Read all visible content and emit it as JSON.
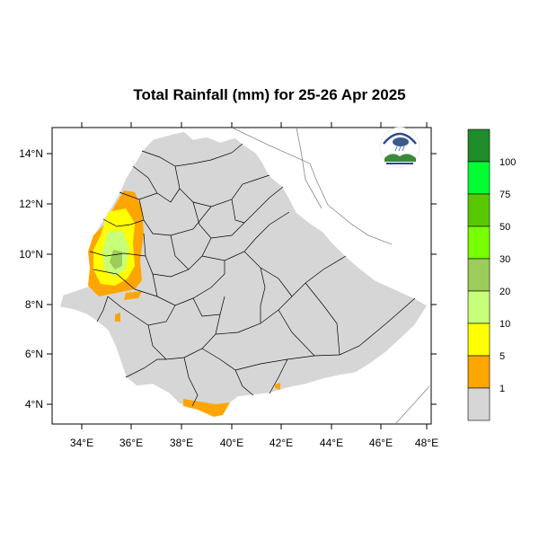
{
  "title": "Total Rainfall (mm) for 25-26 Apr 2025",
  "axes": {
    "x_ticks": [
      "34°E",
      "36°E",
      "38°E",
      "40°E",
      "42°E",
      "44°E",
      "46°E",
      "48°E"
    ],
    "y_ticks": [
      "14°N",
      "12°N",
      "10°N",
      "8°N",
      "6°N",
      "4°N"
    ]
  },
  "legend": {
    "labels": [
      "1",
      "5",
      "10",
      "20",
      "30",
      "50",
      "75",
      "100"
    ],
    "colors": [
      "#d6d6d6",
      "#ffa500",
      "#ffff00",
      "#c8ff78",
      "#9ccc5a",
      "#78ff00",
      "#5ac800",
      "#00ff32",
      "#1e8c28"
    ]
  },
  "logo": {
    "name": "ethiopian-meteorology-institute-logo"
  },
  "colors": {
    "land": "#d6d6d6",
    "rain_1_5": "#ffa500",
    "rain_5_10": "#ffff00",
    "rain_10_20": "#c8ff78",
    "rain_20_30": "#9ccc5a"
  }
}
